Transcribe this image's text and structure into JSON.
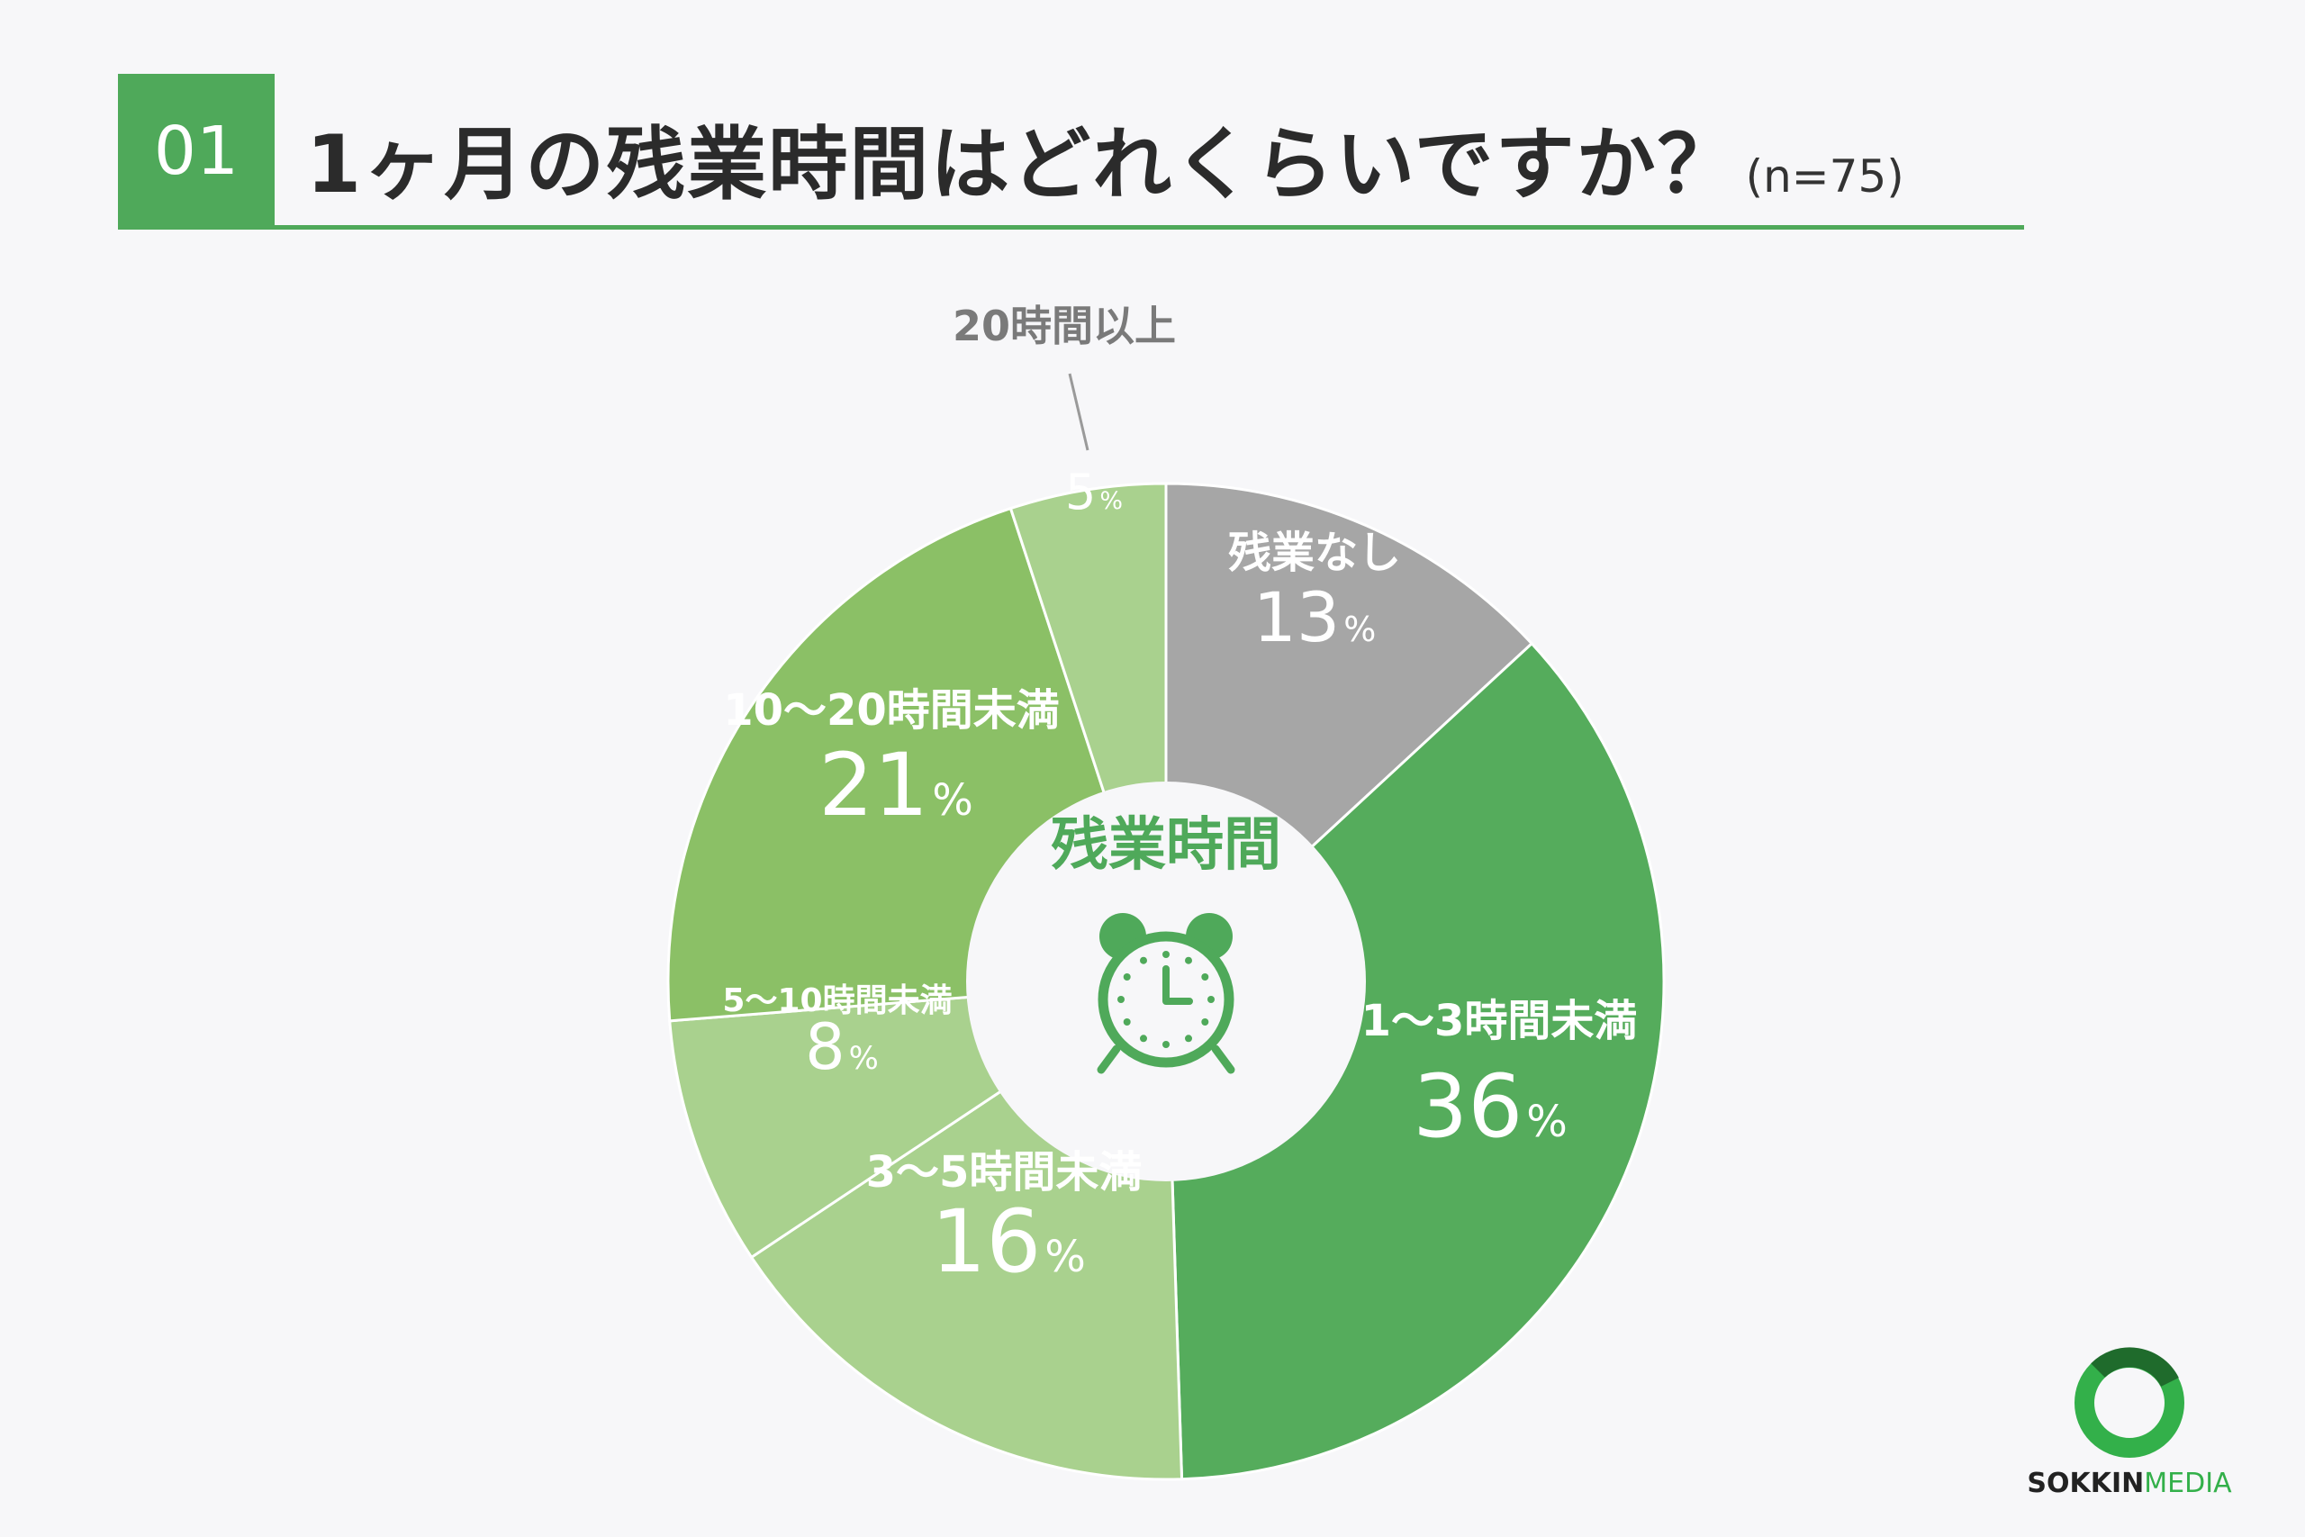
{
  "header": {
    "number": "01",
    "title": "1ヶ月の残業時間はどれくらいですか？",
    "sample": "(n=75)"
  },
  "center": {
    "label": "残業時間",
    "icon": "alarm-clock-icon"
  },
  "logo": {
    "brand_a": "SOKKIN",
    "brand_b": "MEDIA",
    "icon": "ring-logo-icon"
  },
  "colors": {
    "accent": "#4fa95a",
    "background": "#f7f7f9"
  },
  "chart_data": {
    "type": "pie",
    "donut": true,
    "unit": "%",
    "slices": [
      {
        "label": "残業なし",
        "value": 13,
        "color": "#a6a6a6"
      },
      {
        "label": "1〜3時間未満",
        "value": 36,
        "color": "#55ac5c"
      },
      {
        "label": "3〜5時間未満",
        "value": 16,
        "color": "#a9d18e"
      },
      {
        "label": "5〜10時間未満",
        "value": 8,
        "color": "#a9d18e"
      },
      {
        "label": "10〜20時間未満",
        "value": 21,
        "color": "#8bc066"
      },
      {
        "label": "20時間以上",
        "value": 5,
        "color": "#a9d18e"
      }
    ]
  }
}
